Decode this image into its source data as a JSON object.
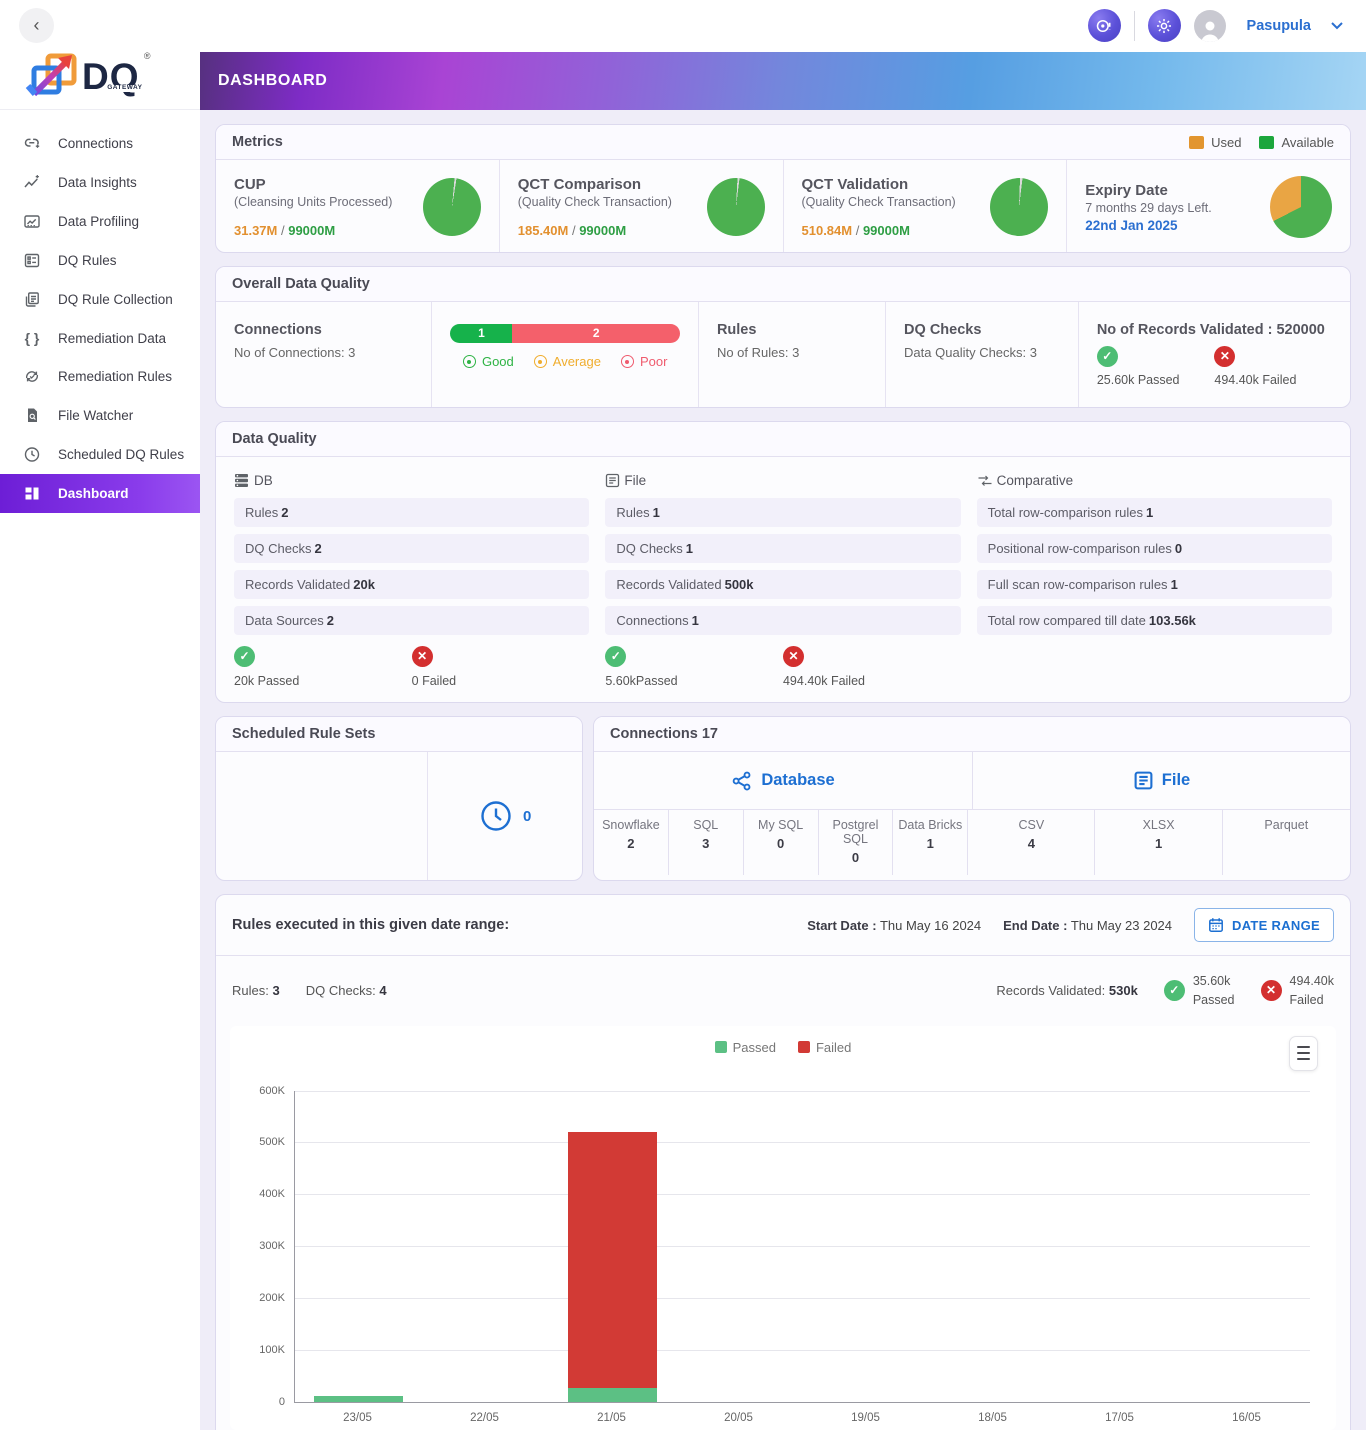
{
  "topbar": {
    "user_name": "Pasupula"
  },
  "brand": {
    "name": "DQ",
    "sub": "GATEWAY",
    "reg": "®"
  },
  "page": {
    "title": "DASHBOARD"
  },
  "sidebar": {
    "items": [
      {
        "label": "Connections"
      },
      {
        "label": "Data Insights"
      },
      {
        "label": "Data Profiling"
      },
      {
        "label": "DQ Rules"
      },
      {
        "label": "DQ Rule Collection"
      },
      {
        "label": "Remediation Data"
      },
      {
        "label": "Remediation Rules"
      },
      {
        "label": "File Watcher"
      },
      {
        "label": "Scheduled DQ Rules"
      },
      {
        "label": "Dashboard",
        "active": true
      }
    ]
  },
  "metrics": {
    "title": "Metrics",
    "legend": [
      {
        "label": "Used",
        "color": "#e2952f"
      },
      {
        "label": "Available",
        "color": "#1ca63c"
      }
    ],
    "cards": [
      {
        "title": "CUP",
        "subtitle": "(Cleansing Units Processed)",
        "used": "31.37M",
        "separator": " / ",
        "total": "99000M",
        "pie": {
          "from": 5,
          "deg": 4,
          "color1": "#d9d9d9",
          "color2": "#4cb050"
        }
      },
      {
        "title": "QCT Comparison",
        "subtitle": "(Quality Check Transaction)",
        "used": "185.40M",
        "separator": " / ",
        "total": "99000M",
        "pie": {
          "from": 3,
          "deg": 4,
          "color1": "#d9d9d9",
          "color2": "#4cb050"
        }
      },
      {
        "title": "QCT Validation",
        "subtitle": "(Quality Check Transaction)",
        "used": "510.84M",
        "separator": " / ",
        "total": "99000M",
        "pie": {
          "from": 2,
          "deg": 5,
          "color1": "#d9d9d9",
          "color2": "#4cb050"
        }
      },
      {
        "title": "Expiry Date",
        "subtitle": "7 months 29 days Left.",
        "date": "22nd Jan 2025",
        "pie": {
          "from": 243,
          "deg": 117,
          "color1": "#e9a544",
          "color2": "#4cb050"
        }
      }
    ]
  },
  "overall": {
    "title": "Overall Data Quality",
    "connections": {
      "title": "Connections",
      "subtitle": "No of Connections: 3"
    },
    "bar": {
      "segments": [
        {
          "label": "1",
          "pct": 27,
          "color": "#16b24b"
        },
        {
          "label": "2",
          "pct": 73,
          "color": "#f4606b"
        }
      ]
    },
    "quality_legend": [
      {
        "label": "Good",
        "color": "#2eb344"
      },
      {
        "label": "Average",
        "color": "#f0ad2d"
      },
      {
        "label": "Poor",
        "color": "#ef5b6e"
      }
    ],
    "rules": {
      "title": "Rules",
      "subtitle": "No of Rules: 3"
    },
    "dq_checks": {
      "title": "DQ Checks",
      "subtitle": "Data Quality Checks: 3"
    },
    "records": {
      "title": "No of Records Validated : 520000",
      "passed": "25.60k Passed",
      "failed": "494.40k Failed"
    }
  },
  "data_quality": {
    "title": "Data Quality",
    "db": {
      "name": "DB",
      "rows": [
        {
          "label": "Rules",
          "value": "2"
        },
        {
          "label": "DQ Checks",
          "value": "2"
        },
        {
          "label": "Records Validated",
          "value": "20k"
        },
        {
          "label": "Data Sources",
          "value": "2"
        }
      ],
      "passed": "20k Passed",
      "failed": "0 Failed"
    },
    "file": {
      "name": "File",
      "rows": [
        {
          "label": "Rules",
          "value": "1"
        },
        {
          "label": "DQ Checks",
          "value": "1"
        },
        {
          "label": "Records Validated",
          "value": "500k"
        },
        {
          "label": "Connections",
          "value": "1"
        }
      ],
      "passed": "5.60kPassed",
      "failed": "494.40k Failed"
    },
    "comparative": {
      "name": "Comparative",
      "rows": [
        {
          "label": "Total row-comparison rules",
          "value": "1"
        },
        {
          "label": "Positional row-comparison rules",
          "value": "0"
        },
        {
          "label": "Full scan row-comparison rules",
          "value": "1"
        },
        {
          "label": "Total row compared till date",
          "value": "103.56k"
        }
      ]
    }
  },
  "scheduled": {
    "title": "Scheduled Rule Sets",
    "count": "0"
  },
  "connections_card": {
    "title": "Connections 17",
    "groups": [
      {
        "label": "Database"
      },
      {
        "label": "File"
      }
    ],
    "columns": [
      {
        "label": "Snowflake",
        "value": "2"
      },
      {
        "label": "SQL",
        "value": "3"
      },
      {
        "label": "My SQL",
        "value": "0"
      },
      {
        "label": "Postgrel SQL",
        "value": "0"
      },
      {
        "label": "Data Bricks",
        "value": "1"
      },
      {
        "label": "CSV",
        "value": "4"
      },
      {
        "label": "XLSX",
        "value": "1"
      },
      {
        "label": "Parquet",
        "value": ""
      }
    ]
  },
  "rules_executed": {
    "title": "Rules executed in this given date range:",
    "start_label": "Start Date :",
    "start_value": "Thu May 16 2024",
    "end_label": "End Date :",
    "end_value": "Thu May 23 2024",
    "date_range_button": "DATE RANGE",
    "rules_label": "Rules:",
    "rules_value": "3",
    "checks_label": "DQ Checks:",
    "checks_value": "4",
    "records_label": "Records Validated:",
    "records_value": "530k",
    "passed_value": "35.60k",
    "passed_label": "Passed",
    "failed_value": "494.40k",
    "failed_label": "Failed"
  },
  "chart_data": {
    "type": "bar",
    "stacked": true,
    "categories": [
      "23/05",
      "22/05",
      "21/05",
      "20/05",
      "19/05",
      "18/05",
      "17/05",
      "16/05"
    ],
    "series": [
      {
        "name": "Passed",
        "color": "#5cc084",
        "values": [
          10000,
          0,
          25600,
          0,
          0,
          0,
          0,
          0
        ]
      },
      {
        "name": "Failed",
        "color": "#d23a35",
        "values": [
          0,
          0,
          494400,
          0,
          0,
          0,
          0,
          0
        ]
      }
    ],
    "ylim": [
      0,
      600000
    ],
    "yticks": [
      "600K",
      "500K",
      "400K",
      "300K",
      "200K",
      "100K",
      "0"
    ],
    "legend_position": "top",
    "grid": true
  }
}
